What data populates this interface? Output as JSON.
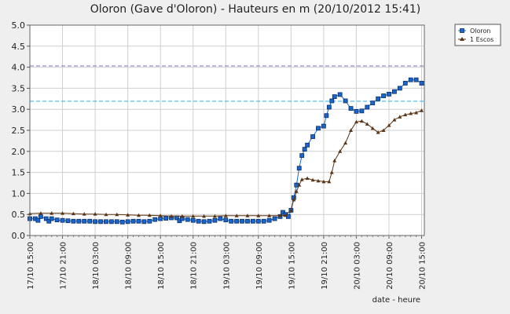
{
  "chart_data": {
    "type": "line",
    "title": "Oloron (Gave d'Oloron) - Hauteurs en m (20/10/2012 15:41)",
    "xlabel": "date - heure",
    "ylabel": "",
    "ylim": [
      0,
      5
    ],
    "yticks": [
      0.0,
      0.5,
      1.0,
      1.5,
      2.0,
      2.5,
      3.0,
      3.5,
      4.0,
      4.5,
      5.0
    ],
    "ytick_labels": [
      "0.0",
      "0.5",
      "1.0",
      "1.5",
      "2.0",
      "2.5",
      "3.0",
      "3.5",
      "4.0",
      "4.5",
      "5.0"
    ],
    "x_unit": "hours since 17/10 15:00",
    "xlim": [
      0,
      72.5
    ],
    "xticks": [
      {
        "x": 0,
        "label": "17/10  15:00"
      },
      {
        "x": 6,
        "label": "17/10  21:00"
      },
      {
        "x": 12,
        "label": "18/10  03:00"
      },
      {
        "x": 18,
        "label": "18/10  09:00"
      },
      {
        "x": 24,
        "label": "18/10  15:00"
      },
      {
        "x": 30,
        "label": "18/10  21:00"
      },
      {
        "x": 36,
        "label": "19/10  03:00"
      },
      {
        "x": 42,
        "label": "19/10  09:00"
      },
      {
        "x": 48,
        "label": "19/10  15:00"
      },
      {
        "x": 54,
        "label": "19/10  21:00"
      },
      {
        "x": 60,
        "label": "20/10  03:00"
      },
      {
        "x": 66,
        "label": "20/10  09:00"
      },
      {
        "x": 72,
        "label": "20/10  15:00"
      }
    ],
    "threshold_lines": [
      {
        "y": 4.03,
        "color": "#7777bb"
      },
      {
        "y": 3.19,
        "color": "#33aadd"
      }
    ],
    "legend_position": "top-right",
    "series": [
      {
        "name": "Oloron",
        "color": "#1a66cc",
        "marker": "square",
        "points": [
          [
            0,
            0.4
          ],
          [
            1,
            0.4
          ],
          [
            1.5,
            0.36
          ],
          [
            2,
            0.45
          ],
          [
            3,
            0.4
          ],
          [
            3.5,
            0.34
          ],
          [
            4,
            0.4
          ],
          [
            5,
            0.37
          ],
          [
            6,
            0.36
          ],
          [
            7,
            0.35
          ],
          [
            8,
            0.34
          ],
          [
            9,
            0.34
          ],
          [
            10,
            0.34
          ],
          [
            11,
            0.34
          ],
          [
            12,
            0.33
          ],
          [
            13,
            0.33
          ],
          [
            14,
            0.33
          ],
          [
            15,
            0.33
          ],
          [
            16,
            0.33
          ],
          [
            17,
            0.32
          ],
          [
            18,
            0.33
          ],
          [
            19,
            0.34
          ],
          [
            20,
            0.34
          ],
          [
            21,
            0.33
          ],
          [
            22,
            0.34
          ],
          [
            23,
            0.38
          ],
          [
            24,
            0.4
          ],
          [
            25,
            0.41
          ],
          [
            26,
            0.42
          ],
          [
            27,
            0.42
          ],
          [
            27.5,
            0.35
          ],
          [
            28,
            0.4
          ],
          [
            29,
            0.38
          ],
          [
            30,
            0.36
          ],
          [
            31,
            0.34
          ],
          [
            32,
            0.33
          ],
          [
            33,
            0.34
          ],
          [
            34,
            0.36
          ],
          [
            35,
            0.4
          ],
          [
            36,
            0.37
          ],
          [
            37,
            0.34
          ],
          [
            38,
            0.34
          ],
          [
            39,
            0.34
          ],
          [
            40,
            0.34
          ],
          [
            41,
            0.34
          ],
          [
            42,
            0.34
          ],
          [
            43,
            0.34
          ],
          [
            44,
            0.36
          ],
          [
            45,
            0.4
          ],
          [
            46,
            0.45
          ],
          [
            46.5,
            0.55
          ],
          [
            47,
            0.5
          ],
          [
            47.5,
            0.45
          ],
          [
            48,
            0.6
          ],
          [
            48.5,
            0.9
          ],
          [
            49,
            1.2
          ],
          [
            49.5,
            1.6
          ],
          [
            50,
            1.9
          ],
          [
            50.5,
            2.05
          ],
          [
            51,
            2.15
          ],
          [
            52,
            2.35
          ],
          [
            53,
            2.55
          ],
          [
            54,
            2.6
          ],
          [
            54.5,
            2.85
          ],
          [
            55,
            3.05
          ],
          [
            55.5,
            3.2
          ],
          [
            56,
            3.3
          ],
          [
            57,
            3.35
          ],
          [
            58,
            3.2
          ],
          [
            59,
            3.02
          ],
          [
            60,
            2.95
          ],
          [
            61,
            2.96
          ],
          [
            62,
            3.05
          ],
          [
            63,
            3.15
          ],
          [
            64,
            3.25
          ],
          [
            65,
            3.32
          ],
          [
            66,
            3.36
          ],
          [
            67,
            3.42
          ],
          [
            68,
            3.5
          ],
          [
            69,
            3.62
          ],
          [
            70,
            3.7
          ],
          [
            71,
            3.7
          ],
          [
            72,
            3.62
          ]
        ]
      },
      {
        "name": "1 Escos",
        "color": "#5a3414",
        "marker": "triangle",
        "points": [
          [
            0,
            0.52
          ],
          [
            2,
            0.53
          ],
          [
            4,
            0.53
          ],
          [
            6,
            0.53
          ],
          [
            8,
            0.52
          ],
          [
            10,
            0.51
          ],
          [
            12,
            0.51
          ],
          [
            14,
            0.5
          ],
          [
            16,
            0.5
          ],
          [
            18,
            0.49
          ],
          [
            20,
            0.48
          ],
          [
            22,
            0.48
          ],
          [
            24,
            0.47
          ],
          [
            26,
            0.46
          ],
          [
            28,
            0.46
          ],
          [
            30,
            0.46
          ],
          [
            32,
            0.46
          ],
          [
            34,
            0.46
          ],
          [
            36,
            0.47
          ],
          [
            38,
            0.47
          ],
          [
            40,
            0.47
          ],
          [
            42,
            0.47
          ],
          [
            44,
            0.47
          ],
          [
            46,
            0.47
          ],
          [
            47,
            0.48
          ],
          [
            48,
            0.6
          ],
          [
            48.5,
            0.85
          ],
          [
            49,
            1.05
          ],
          [
            49.5,
            1.2
          ],
          [
            50,
            1.33
          ],
          [
            51,
            1.36
          ],
          [
            52,
            1.32
          ],
          [
            53,
            1.3
          ],
          [
            54,
            1.28
          ],
          [
            55,
            1.28
          ],
          [
            55.5,
            1.5
          ],
          [
            56,
            1.78
          ],
          [
            57,
            2.0
          ],
          [
            58,
            2.2
          ],
          [
            59,
            2.5
          ],
          [
            60,
            2.7
          ],
          [
            61,
            2.72
          ],
          [
            62,
            2.65
          ],
          [
            63,
            2.55
          ],
          [
            64,
            2.45
          ],
          [
            65,
            2.5
          ],
          [
            66,
            2.62
          ],
          [
            67,
            2.75
          ],
          [
            68,
            2.82
          ],
          [
            69,
            2.87
          ],
          [
            70,
            2.9
          ],
          [
            71,
            2.92
          ],
          [
            72,
            2.97
          ]
        ]
      }
    ]
  }
}
